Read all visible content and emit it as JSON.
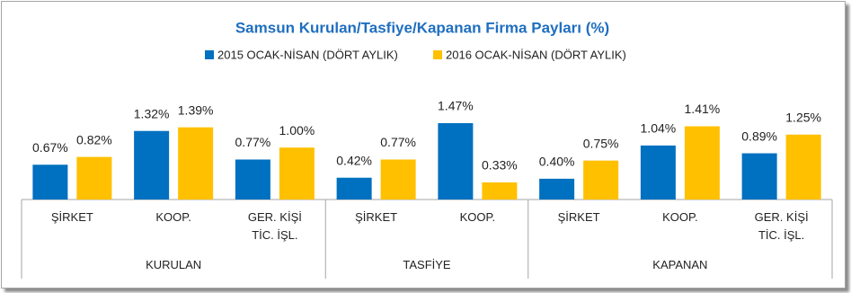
{
  "chart_data": {
    "type": "bar",
    "title": "Samsun Kurulan/Tasfiye/Kapanan Firma Payları (%)",
    "groups": [
      {
        "name": "KURULAN",
        "categories": [
          "ŞİRKET",
          "KOOP.",
          "GER. KİŞİ TİC. İŞL."
        ]
      },
      {
        "name": "TASFİYE",
        "categories": [
          "ŞİRKET",
          "KOOP."
        ]
      },
      {
        "name": "KAPANAN",
        "categories": [
          "ŞİRKET",
          "KOOP.",
          "GER. KİŞİ TİC. İŞL."
        ]
      }
    ],
    "series": [
      {
        "name": "2015 OCAK-NİSAN (DÖRT AYLIK)",
        "color": "#0070c0",
        "values": [
          0.67,
          1.32,
          0.77,
          0.42,
          1.47,
          0.4,
          1.04,
          0.89
        ],
        "value_labels": [
          "0.67%",
          "1.32%",
          "0.77%",
          "0.42%",
          "1.47%",
          "0.40%",
          "1.04%",
          "0.89%"
        ]
      },
      {
        "name": "2016 OCAK-NİSAN (DÖRT AYLIK)",
        "color": "#ffc000",
        "values": [
          0.82,
          1.39,
          1.0,
          0.77,
          0.33,
          0.75,
          1.41,
          1.25
        ],
        "value_labels": [
          "0.82%",
          "1.39%",
          "1.00%",
          "0.77%",
          "0.33%",
          "0.75%",
          "1.41%",
          "1.25%"
        ]
      }
    ]
  }
}
